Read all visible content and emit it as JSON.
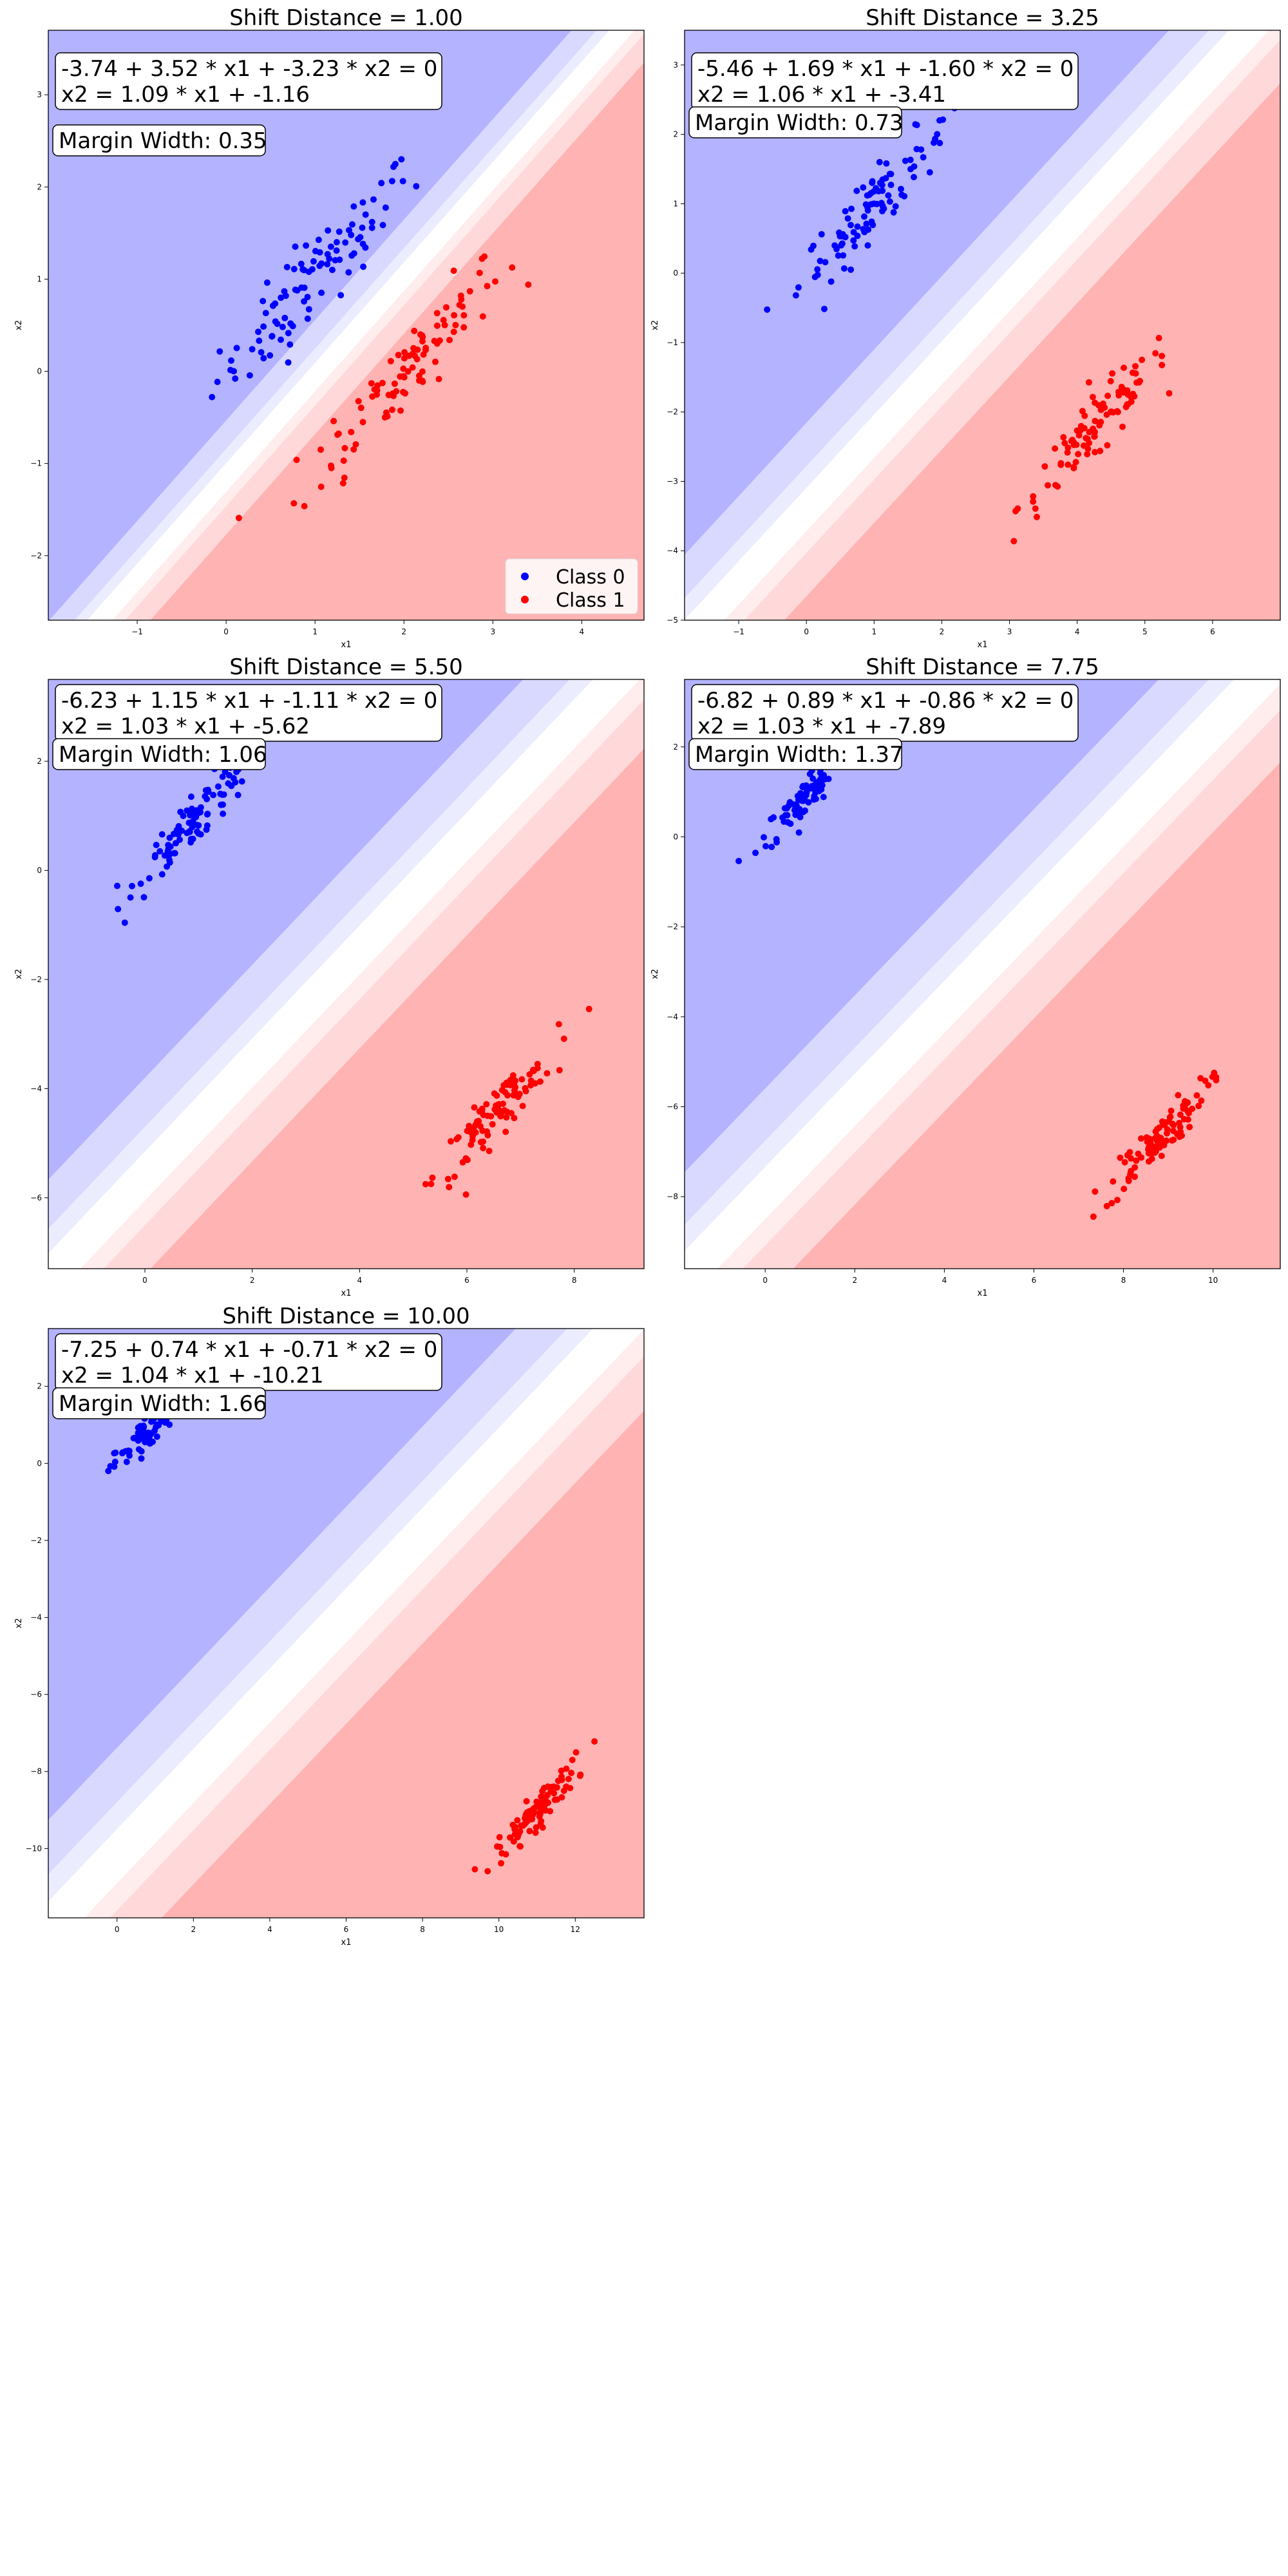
{
  "colors": {
    "class0": "#0000ff",
    "class1": "#ff0000",
    "band_blue": [
      "#b3b3ff",
      "#d9d9ff",
      "#ececff"
    ],
    "band_red": [
      "#ffb3b3",
      "#ffd9d9",
      "#ffecec"
    ]
  },
  "chart_data": [
    {
      "type": "scatter",
      "title": "Shift Distance = 1.00",
      "xlabel": "x1",
      "ylabel": "x2",
      "xlim": [
        -2.0,
        4.7
      ],
      "ylim": [
        -2.7,
        3.7
      ],
      "xticks": [
        -1,
        0,
        1,
        2,
        3,
        4
      ],
      "yticks": [
        -2,
        -1,
        0,
        1,
        2,
        3
      ],
      "equation": "-3.74 + 3.52 * x1 + -3.23 * x2 = 0",
      "line_equation": "x2 = 1.09 * x1 + -1.16",
      "margin_width": "Margin Width: 0.35",
      "boundary": {
        "w0": -3.74,
        "w1": 3.52,
        "w2": -3.23
      },
      "class0_center": [
        1.0,
        1.0
      ],
      "class1_center": [
        2.0,
        0.0
      ],
      "legend": {
        "show": true,
        "position": "lower-right",
        "entries": [
          "Class 0",
          "Class 1"
        ]
      }
    },
    {
      "type": "scatter",
      "title": "Shift Distance = 3.25",
      "xlabel": "x1",
      "ylabel": "x2",
      "xlim": [
        -1.8,
        7.0
      ],
      "ylim": [
        -5.0,
        3.5
      ],
      "xticks": [
        -1,
        0,
        1,
        2,
        3,
        4,
        5,
        6
      ],
      "yticks": [
        -5,
        -4,
        -3,
        -2,
        -1,
        0,
        1,
        2,
        3
      ],
      "equation": "-5.46 + 1.69 * x1 + -1.60 * x2 = 0",
      "line_equation": "x2 = 1.06 * x1 + -3.41",
      "margin_width": "Margin Width: 0.73",
      "boundary": {
        "w0": -5.46,
        "w1": 1.69,
        "w2": -1.6
      },
      "class0_center": [
        1.0,
        1.0
      ],
      "class1_center": [
        4.25,
        -2.25
      ],
      "legend": {
        "show": false
      }
    },
    {
      "type": "scatter",
      "title": "Shift Distance = 5.50",
      "xlabel": "x1",
      "ylabel": "x2",
      "xlim": [
        -1.8,
        9.3
      ],
      "ylim": [
        -7.3,
        3.5
      ],
      "xticks": [
        0,
        2,
        4,
        6,
        8
      ],
      "yticks": [
        -6,
        -4,
        -2,
        0,
        2
      ],
      "equation": "-6.23 + 1.15 * x1 + -1.11 * x2 = 0",
      "line_equation": "x2 = 1.03 * x1 + -5.62",
      "margin_width": "Margin Width: 1.06",
      "boundary": {
        "w0": -6.23,
        "w1": 1.15,
        "w2": -1.11
      },
      "class0_center": [
        1.0,
        1.0
      ],
      "class1_center": [
        6.5,
        -4.5
      ],
      "legend": {
        "show": false
      }
    },
    {
      "type": "scatter",
      "title": "Shift Distance = 7.75",
      "xlabel": "x1",
      "ylabel": "x2",
      "xlim": [
        -1.8,
        11.5
      ],
      "ylim": [
        -9.6,
        3.5
      ],
      "xticks": [
        0,
        2,
        4,
        6,
        8,
        10
      ],
      "yticks": [
        -8,
        -6,
        -4,
        -2,
        0,
        2
      ],
      "equation": "-6.82 + 0.89 * x1 + -0.86 * x2 = 0",
      "line_equation": "x2 = 1.03 * x1 + -7.89",
      "margin_width": "Margin Width: 1.37",
      "boundary": {
        "w0": -6.82,
        "w1": 0.89,
        "w2": -0.86
      },
      "class0_center": [
        1.0,
        1.0
      ],
      "class1_center": [
        8.75,
        -6.75
      ],
      "legend": {
        "show": false
      }
    },
    {
      "type": "scatter",
      "title": "Shift Distance = 10.00",
      "xlabel": "x1",
      "ylabel": "x2",
      "xlim": [
        -1.8,
        13.8
      ],
      "ylim": [
        -11.8,
        3.5
      ],
      "xticks": [
        0,
        2,
        4,
        6,
        8,
        10,
        12
      ],
      "yticks": [
        -10,
        -8,
        -6,
        -4,
        -2,
        0,
        2
      ],
      "equation": "-7.25 + 0.74 * x1 + -0.71 * x2 = 0",
      "line_equation": "x2 = 1.04 * x1 + -10.21",
      "margin_width": "Margin Width: 1.66",
      "boundary": {
        "w0": -7.25,
        "w1": 0.74,
        "w2": -0.71
      },
      "class0_center": [
        1.0,
        1.0
      ],
      "class1_center": [
        11.0,
        -9.0
      ],
      "legend": {
        "show": false
      }
    }
  ]
}
